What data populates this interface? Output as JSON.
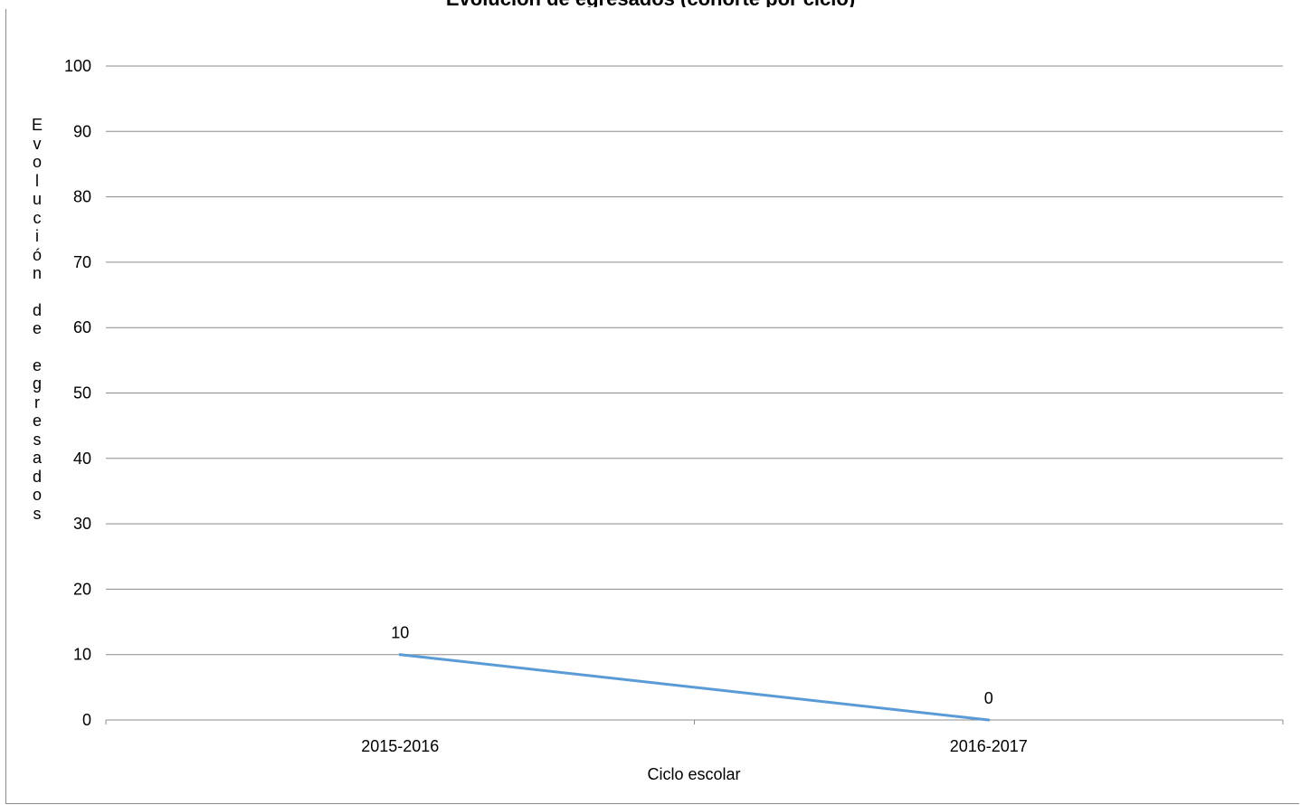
{
  "chart_data": {
    "type": "line",
    "title_partial": "Evolución de egresados (cohorte por ciclo)",
    "categories": [
      "2015-2016",
      "2016-2017"
    ],
    "series": [
      {
        "values": [
          10,
          0
        ],
        "color": "#5B9BD5"
      }
    ],
    "data_labels": [
      "10",
      "0"
    ],
    "xlabel": "Ciclo escolar",
    "ylabel": "Evolución de egresados",
    "ylim": [
      0,
      100
    ],
    "yticks": [
      "0",
      "10",
      "20",
      "30",
      "40",
      "50",
      "60",
      "70",
      "80",
      "90",
      "100"
    ],
    "grid": true,
    "legend": "none"
  }
}
